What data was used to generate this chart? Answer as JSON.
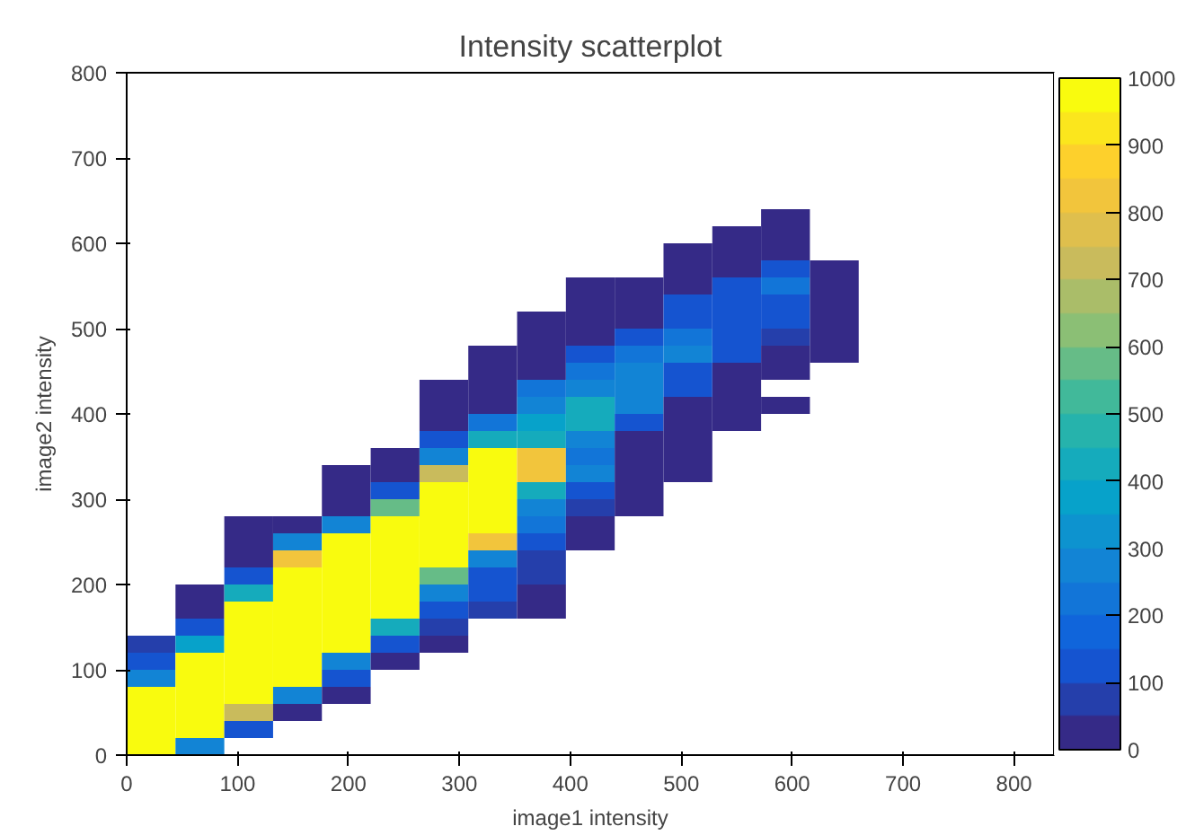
{
  "chart_data": {
    "type": "heatmap",
    "title": "Intensity scatterplot",
    "xlabel": "image1 intensity",
    "ylabel": "image2 intensity",
    "x": [
      22,
      66,
      110,
      154,
      198,
      242,
      286,
      330,
      374,
      418,
      462,
      506,
      550,
      594,
      638
    ],
    "y": [
      630,
      610,
      590,
      570,
      550,
      530,
      510,
      490,
      470,
      450,
      430,
      410,
      390,
      370,
      350,
      330,
      310,
      290,
      270,
      250,
      230,
      210,
      190,
      170,
      150,
      130,
      110,
      90,
      70,
      50,
      30,
      10
    ],
    "cells": [
      [
        null,
        null,
        null,
        null,
        null,
        null,
        null,
        null,
        null,
        null,
        null,
        null,
        null,
        40,
        null
      ],
      [
        null,
        null,
        null,
        null,
        null,
        null,
        null,
        null,
        null,
        null,
        null,
        null,
        40,
        40,
        null
      ],
      [
        null,
        null,
        null,
        null,
        null,
        null,
        null,
        null,
        null,
        null,
        null,
        40,
        40,
        40,
        null
      ],
      [
        null,
        null,
        null,
        null,
        null,
        null,
        null,
        null,
        null,
        null,
        null,
        40,
        40,
        150,
        40
      ],
      [
        null,
        null,
        null,
        null,
        null,
        null,
        null,
        null,
        null,
        40,
        40,
        40,
        120,
        200,
        40
      ],
      [
        null,
        null,
        null,
        null,
        null,
        null,
        null,
        null,
        null,
        40,
        40,
        120,
        120,
        150,
        40
      ],
      [
        null,
        null,
        null,
        null,
        null,
        null,
        null,
        null,
        40,
        40,
        40,
        150,
        150,
        150,
        40
      ],
      [
        null,
        null,
        null,
        null,
        null,
        null,
        null,
        null,
        40,
        40,
        120,
        200,
        150,
        60,
        40
      ],
      [
        null,
        null,
        null,
        null,
        null,
        null,
        null,
        40,
        40,
        120,
        200,
        250,
        120,
        40,
        40
      ],
      [
        null,
        null,
        null,
        null,
        null,
        null,
        null,
        40,
        40,
        200,
        250,
        150,
        40,
        40,
        null
      ],
      [
        null,
        null,
        null,
        null,
        null,
        null,
        40,
        40,
        200,
        300,
        300,
        120,
        40,
        null,
        null
      ],
      [
        null,
        null,
        null,
        null,
        null,
        null,
        40,
        40,
        250,
        400,
        300,
        40,
        40,
        40,
        null
      ],
      [
        null,
        null,
        null,
        null,
        null,
        null,
        40,
        200,
        350,
        420,
        150,
        40,
        40,
        null,
        null
      ],
      [
        null,
        null,
        null,
        null,
        null,
        null,
        150,
        420,
        420,
        300,
        40,
        40,
        null,
        null,
        null
      ],
      [
        null,
        null,
        null,
        null,
        null,
        40,
        250,
        1000,
        800,
        200,
        40,
        40,
        null,
        null,
        null
      ],
      [
        null,
        null,
        null,
        null,
        40,
        40,
        700,
        1000,
        800,
        250,
        40,
        40,
        null,
        null,
        null
      ],
      [
        null,
        null,
        null,
        null,
        40,
        150,
        1000,
        1000,
        420,
        150,
        40,
        null,
        null,
        null,
        null
      ],
      [
        null,
        null,
        null,
        null,
        40,
        550,
        1000,
        1000,
        280,
        60,
        40,
        null,
        null,
        null,
        null
      ],
      [
        null,
        null,
        30,
        40,
        300,
        1000,
        1000,
        1000,
        200,
        40,
        null,
        null,
        null,
        null,
        null
      ],
      [
        null,
        null,
        40,
        250,
        1000,
        1000,
        1000,
        800,
        150,
        40,
        null,
        null,
        null,
        null,
        null
      ],
      [
        null,
        null,
        40,
        800,
        1000,
        1000,
        1000,
        300,
        60,
        null,
        null,
        null,
        null,
        null,
        null
      ],
      [
        null,
        null,
        120,
        1000,
        1000,
        1000,
        550,
        150,
        60,
        null,
        null,
        null,
        null,
        null,
        null
      ],
      [
        null,
        30,
        420,
        1000,
        1000,
        1000,
        250,
        150,
        40,
        null,
        null,
        null,
        null,
        null,
        null
      ],
      [
        null,
        40,
        1000,
        1000,
        1000,
        1000,
        150,
        50,
        40,
        null,
        null,
        null,
        null,
        null,
        null
      ],
      [
        null,
        120,
        1000,
        1000,
        1000,
        420,
        50,
        null,
        null,
        null,
        null,
        null,
        null,
        null,
        null
      ],
      [
        50,
        350,
        1000,
        1000,
        1000,
        120,
        40,
        null,
        null,
        null,
        null,
        null,
        null,
        null,
        null
      ],
      [
        120,
        1000,
        1000,
        1000,
        300,
        40,
        null,
        null,
        null,
        null,
        null,
        null,
        null,
        null,
        null
      ],
      [
        250,
        1000,
        1000,
        1000,
        120,
        null,
        null,
        null,
        null,
        null,
        null,
        null,
        null,
        null,
        null
      ],
      [
        1000,
        1000,
        1000,
        250,
        40,
        null,
        null,
        null,
        null,
        null,
        null,
        null,
        null,
        null,
        null
      ],
      [
        1000,
        1000,
        700,
        40,
        null,
        null,
        null,
        null,
        null,
        null,
        null,
        null,
        null,
        null,
        null
      ],
      [
        1000,
        1000,
        120,
        null,
        null,
        null,
        null,
        null,
        null,
        null,
        null,
        null,
        null,
        null,
        null
      ],
      [
        1000,
        300,
        null,
        null,
        null,
        null,
        null,
        null,
        null,
        null,
        null,
        null,
        null,
        null,
        null
      ]
    ],
    "xlim": [
      0,
      836
    ],
    "ylim": [
      0,
      800
    ],
    "xticks": [
      0,
      100,
      200,
      300,
      400,
      500,
      600,
      700,
      800
    ],
    "yticks": [
      0,
      100,
      200,
      300,
      400,
      500,
      600,
      700,
      800
    ],
    "clim": [
      0,
      1000
    ],
    "cticks": [
      0,
      100,
      200,
      300,
      400,
      500,
      600,
      700,
      800,
      900,
      1000
    ],
    "grid": false
  }
}
